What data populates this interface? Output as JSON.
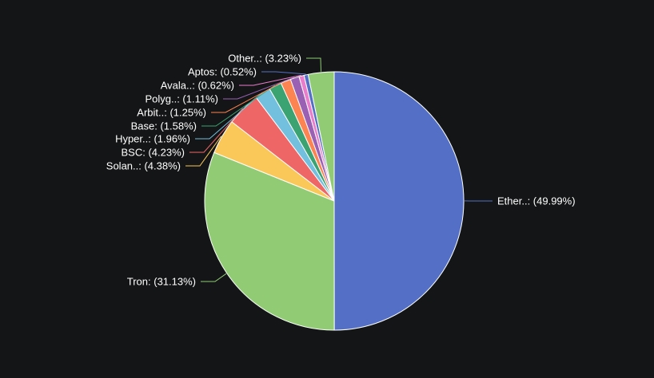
{
  "chart_data": {
    "type": "pie",
    "title": "",
    "legend": "none",
    "slices": [
      {
        "name": "Ether..",
        "value": 49.99,
        "label": "Ether..: (49.99%)",
        "color": "#5470c6"
      },
      {
        "name": "Tron",
        "value": 31.13,
        "label": "Tron: (31.13%)",
        "color": "#91cc75"
      },
      {
        "name": "Solan..",
        "value": 4.38,
        "label": "Solan..: (4.38%)",
        "color": "#fac858"
      },
      {
        "name": "BSC",
        "value": 4.23,
        "label": "BSC: (4.23%)",
        "color": "#ee6666"
      },
      {
        "name": "Hyper..",
        "value": 1.96,
        "label": "Hyper..: (1.96%)",
        "color": "#73c0de"
      },
      {
        "name": "Base",
        "value": 1.58,
        "label": "Base: (1.58%)",
        "color": "#3ba272"
      },
      {
        "name": "Arbit..",
        "value": 1.25,
        "label": "Arbit..: (1.25%)",
        "color": "#fc8452"
      },
      {
        "name": "Polyg..",
        "value": 1.11,
        "label": "Polyg..: (1.11%)",
        "color": "#9a60b4"
      },
      {
        "name": "Avala..",
        "value": 0.62,
        "label": "Avala..: (0.62%)",
        "color": "#ea7ccc"
      },
      {
        "name": "Aptos",
        "value": 0.52,
        "label": "Aptos: (0.52%)",
        "color": "#5470c6"
      },
      {
        "name": "Other..",
        "value": 3.23,
        "label": "Other..: (3.23%)",
        "color": "#91cc75"
      }
    ]
  }
}
